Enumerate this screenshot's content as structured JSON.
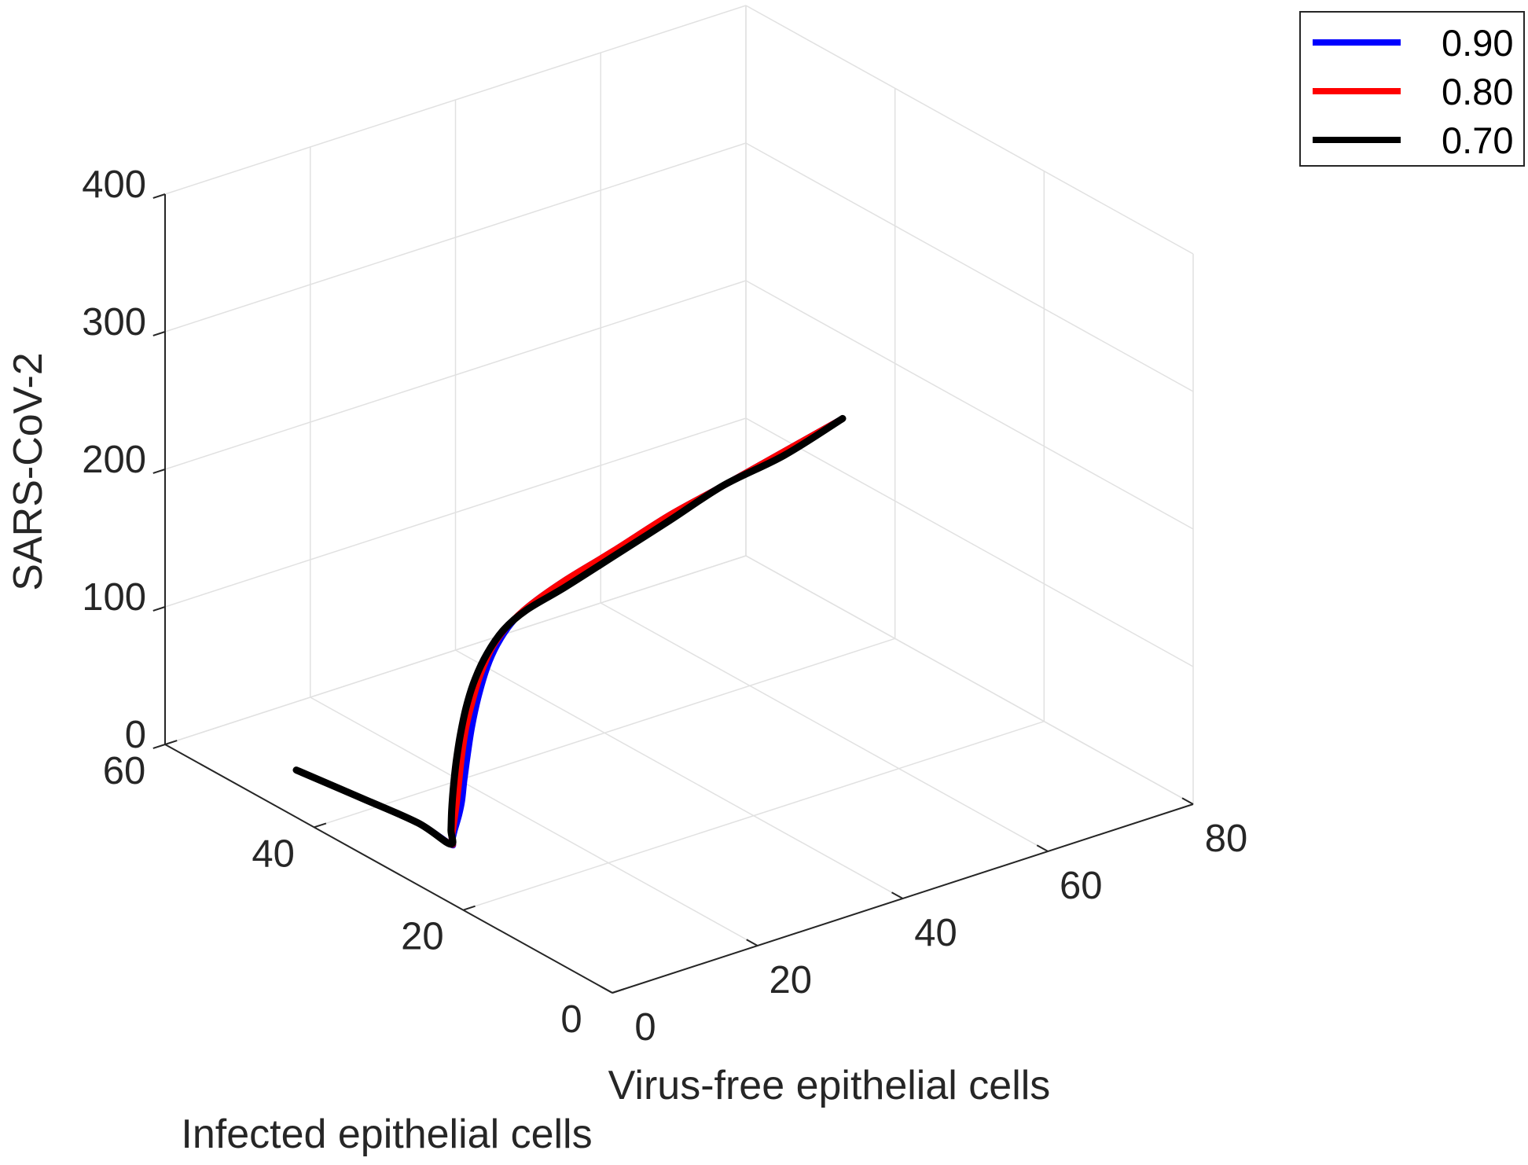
{
  "chart_data": {
    "type": "line3d",
    "title": "",
    "xlabel": "Virus-free epithelial cells",
    "ylabel": "Infected epithelial cells",
    "zlabel": "SARS-CoV-2",
    "xlim": [
      0,
      80
    ],
    "ylim": [
      0,
      60
    ],
    "zlim": [
      0,
      400
    ],
    "xticks": [
      "0",
      "20",
      "40",
      "60",
      "80"
    ],
    "yticks": [
      "0",
      "20",
      "40",
      "60"
    ],
    "zticks": [
      "0",
      "100",
      "200",
      "300",
      "400"
    ],
    "grid": true,
    "legend_position": "top-right",
    "series": [
      {
        "name": "0.90",
        "color": "#0000ff",
        "points": [
          [
            7.4,
            49.6,
            0
          ],
          [
            8.7,
            42.0,
            0
          ],
          [
            9.7,
            35.5,
            0
          ],
          [
            9.2,
            30.7,
            0
          ],
          [
            9.1,
            30.4,
            3
          ],
          [
            9.6,
            30.5,
            10
          ],
          [
            10.2,
            30.5,
            20
          ],
          [
            10.5,
            30.4,
            30
          ],
          [
            10.6,
            30.2,
            45
          ],
          [
            10.9,
            30.0,
            65
          ],
          [
            11.4,
            29.9,
            85
          ],
          [
            12.3,
            29.9,
            105
          ],
          [
            13.9,
            30.3,
            122
          ],
          [
            15.9,
            30.9,
            133
          ],
          [
            18.6,
            31.7,
            141
          ],
          [
            21.9,
            32.5,
            146
          ],
          [
            27.0,
            32.7,
            155
          ],
          [
            33.3,
            32.3,
            167
          ],
          [
            40.1,
            31.4,
            184
          ],
          [
            46.0,
            29.9,
            200
          ],
          [
            52.1,
            27.7,
            221
          ],
          [
            58.0,
            25.6,
            241
          ]
        ]
      },
      {
        "name": "0.80",
        "color": "#ff0000",
        "points": [
          [
            7.4,
            49.6,
            0
          ],
          [
            8.7,
            42.0,
            0
          ],
          [
            9.7,
            35.5,
            0
          ],
          [
            9.2,
            30.7,
            0
          ],
          [
            9.3,
            30.6,
            5
          ],
          [
            9.6,
            30.6,
            15
          ],
          [
            9.9,
            30.5,
            30
          ],
          [
            10.0,
            30.3,
            45
          ],
          [
            10.2,
            30.1,
            65
          ],
          [
            10.7,
            30.0,
            85
          ],
          [
            11.6,
            30.0,
            103
          ],
          [
            13.1,
            30.4,
            118
          ],
          [
            15.4,
            31.1,
            131
          ],
          [
            18.3,
            31.8,
            140
          ],
          [
            21.9,
            32.5,
            146
          ],
          [
            27.0,
            32.7,
            155
          ],
          [
            33.3,
            32.3,
            167
          ],
          [
            40.1,
            31.4,
            184
          ],
          [
            46.0,
            29.9,
            200
          ],
          [
            52.1,
            27.7,
            221
          ],
          [
            58.0,
            25.6,
            241
          ]
        ]
      },
      {
        "name": "0.70",
        "color": "#000000",
        "points": [
          [
            7.4,
            49.6,
            0
          ],
          [
            8.7,
            42.0,
            0
          ],
          [
            9.7,
            35.5,
            0
          ],
          [
            9.2,
            30.7,
            0
          ],
          [
            9.3,
            30.7,
            10
          ],
          [
            9.3,
            30.6,
            25
          ],
          [
            9.4,
            30.5,
            40
          ],
          [
            9.6,
            30.3,
            60
          ],
          [
            10.1,
            30.2,
            80
          ],
          [
            11.0,
            30.3,
            98
          ],
          [
            12.6,
            30.7,
            114
          ],
          [
            14.9,
            31.3,
            127
          ],
          [
            17.9,
            32.0,
            137
          ],
          [
            21.6,
            32.6,
            143
          ],
          [
            27.0,
            32.7,
            150
          ],
          [
            33.0,
            31.9,
            165
          ],
          [
            40.1,
            31.4,
            180
          ],
          [
            46.0,
            29.9,
            200
          ],
          [
            52.1,
            27.7,
            218
          ],
          [
            58.0,
            25.6,
            241
          ]
        ]
      }
    ]
  }
}
